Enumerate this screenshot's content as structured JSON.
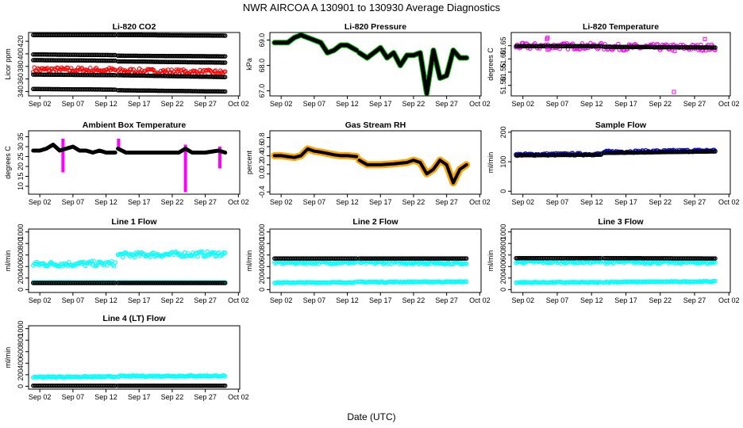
{
  "figure": {
    "title": "NWR   AIRCOA A   130901 to 130930   Average Diagnostics",
    "xlabel": "Date (UTC)"
  },
  "x_ticks": [
    "Sep 02",
    "Sep 07",
    "Sep 12",
    "Sep 17",
    "Sep 22",
    "Sep 27",
    "Oct 02"
  ],
  "x_tick_days": [
    2,
    7,
    12,
    17,
    22,
    27,
    32
  ],
  "x_range_days": [
    0.3,
    32.2
  ],
  "data_gap_days": [
    13.4,
    13.8
  ],
  "colors": {
    "black": "#000000",
    "red": "#ff0000",
    "magenta": "#ff00ff",
    "green": "#00c800",
    "orange": "#ffa500",
    "blue": "#0000ff",
    "cyan": "#00ffff"
  },
  "chart_data": [
    {
      "id": "co2",
      "type": "scatter",
      "title": "Li-820 CO2",
      "ylabel": "Licor ppm",
      "ylim": [
        333,
        434
      ],
      "yticks": [
        340,
        360,
        380,
        400,
        420
      ],
      "series": [
        {
          "name": "level-1",
          "color": "black",
          "kind": "band",
          "segments": [
            [
              1,
              13.4,
              430,
              430
            ],
            [
              13.8,
              30,
              430,
              429
            ]
          ]
        },
        {
          "name": "level-2",
          "color": "black",
          "kind": "band",
          "segments": [
            [
              1,
              13.4,
              399,
              398
            ],
            [
              13.8,
              30,
              397,
              396
            ]
          ]
        },
        {
          "name": "level-3",
          "color": "black",
          "kind": "band",
          "segments": [
            [
              1,
              13.4,
              390,
              389
            ],
            [
              13.8,
              30,
              388,
              386
            ]
          ]
        },
        {
          "name": "level-4",
          "color": "red",
          "kind": "noisy",
          "segments": [
            [
              1,
              13.4,
              375,
              374
            ],
            [
              13.8,
              30,
              373,
              370
            ]
          ],
          "spread": 4
        },
        {
          "name": "level-5",
          "color": "black",
          "kind": "band",
          "segments": [
            [
              1,
              13.4,
              367,
              366
            ],
            [
              13.8,
              30,
              366,
              363
            ]
          ]
        },
        {
          "name": "level-6",
          "color": "black",
          "kind": "band",
          "segments": [
            [
              1,
              13.4,
              344,
              343
            ],
            [
              13.8,
              30,
              342,
              340
            ]
          ]
        }
      ]
    },
    {
      "id": "pressure",
      "type": "line",
      "title": "Li-820 Pressure",
      "ylabel": "kPa",
      "ylim": [
        66.8,
        69.3
      ],
      "yticks": [
        67.0,
        68.0,
        69.0
      ],
      "ytick_labels": [
        "67.0",
        "68.0",
        "69.0"
      ],
      "series": [
        {
          "name": "pressure-outline",
          "color": "green",
          "width": 7,
          "x": [
            1,
            2,
            3,
            4,
            5,
            6,
            7,
            8,
            9,
            10,
            11,
            12,
            13.4,
            13.8,
            15,
            16,
            17,
            18,
            19,
            20,
            21,
            22,
            23,
            24,
            25,
            26,
            27,
            28,
            29,
            30
          ],
          "y": [
            68.9,
            68.9,
            68.9,
            69.1,
            69.2,
            69.1,
            69.0,
            68.9,
            68.5,
            68.6,
            68.8,
            68.8,
            68.6,
            68.5,
            68.3,
            68.5,
            68.7,
            68.3,
            68.5,
            68.0,
            68.4,
            68.4,
            68.5,
            66.9,
            68.6,
            67.5,
            67.6,
            68.6,
            68.3,
            68.3
          ]
        },
        {
          "name": "pressure",
          "color": "black",
          "width": 5,
          "x": [
            1,
            2,
            3,
            4,
            5,
            6,
            7,
            8,
            9,
            10,
            11,
            12,
            13.4,
            13.8,
            15,
            16,
            17,
            18,
            19,
            20,
            21,
            22,
            23,
            24,
            25,
            26,
            27,
            28,
            29,
            30
          ],
          "y": [
            68.9,
            68.9,
            68.9,
            69.1,
            69.2,
            69.1,
            69.0,
            68.9,
            68.5,
            68.6,
            68.8,
            68.8,
            68.6,
            68.5,
            68.3,
            68.5,
            68.7,
            68.3,
            68.5,
            68.0,
            68.4,
            68.4,
            68.5,
            66.9,
            68.6,
            67.5,
            67.6,
            68.6,
            68.3,
            68.3
          ]
        }
      ]
    },
    {
      "id": "li820temp",
      "type": "scatter",
      "title": "Li-820 Temperature",
      "ylabel": "degrees C",
      "ylim": [
        51.46,
        51.7
      ],
      "yticks": [
        51.5,
        51.55,
        51.6,
        51.65
      ],
      "ytick_labels": [
        "51.50",
        "51.55",
        "51.60",
        "51.65"
      ],
      "series": [
        {
          "name": "temp-spread",
          "color": "magenta",
          "kind": "noisy",
          "segments": [
            [
              1,
              13.4,
              51.648,
              51.648
            ],
            [
              13.8,
              30,
              51.645,
              51.643
            ]
          ],
          "spread": 0.012
        },
        {
          "name": "temp",
          "color": "black",
          "kind": "band",
          "segments": [
            [
              1,
              13.4,
              51.648,
              51.648
            ],
            [
              13.8,
              30,
              51.646,
              51.643
            ]
          ]
        },
        {
          "name": "temp-outliers",
          "color": "magenta",
          "kind": "points",
          "x": [
            5.5,
            5.6,
            24,
            24.1,
            28.5,
            5.6
          ],
          "y": [
            51.675,
            51.68,
            51.475,
            51.63,
            51.675,
            51.635
          ]
        }
      ]
    },
    {
      "id": "ambient",
      "type": "line",
      "title": "Ambient Box Temperature",
      "ylabel": "degrees C",
      "ylim": [
        6,
        38
      ],
      "yticks": [
        10,
        15,
        20,
        25,
        30,
        35
      ],
      "series": [
        {
          "name": "spikes",
          "color": "magenta",
          "kind": "spikes",
          "x": [
            5.5,
            13.9,
            24,
            29.2
          ],
          "ytop": [
            34,
            34,
            31,
            30
          ],
          "ybottom": [
            17,
            28,
            7,
            19
          ]
        },
        {
          "name": "ambient",
          "color": "black",
          "width": 5,
          "x": [
            1,
            2,
            3,
            4,
            5,
            6,
            7,
            8,
            9,
            10,
            11,
            12,
            13.4,
            13.8,
            15,
            17,
            19,
            21,
            23,
            24,
            25,
            27,
            29,
            30
          ],
          "y": [
            28,
            28,
            29,
            31,
            28,
            29,
            30,
            28,
            28,
            27,
            28,
            27,
            27,
            29,
            27,
            27,
            27,
            27,
            27,
            29,
            27,
            27,
            28,
            27
          ]
        }
      ]
    },
    {
      "id": "rh",
      "type": "line",
      "title": "Gas Stream RH",
      "ylabel": "percent",
      "ylim": [
        -0.45,
        0.95
      ],
      "yticks": [
        -0.4,
        0.0,
        0.2,
        0.4,
        0.6,
        0.8
      ],
      "ytick_labels": [
        "-0.4",
        "0.0",
        "0.2",
        "0.4",
        "0.6",
        "0.8"
      ],
      "series": [
        {
          "name": "rh-spread",
          "color": "orange",
          "width": 9,
          "x": [
            1,
            2,
            3,
            4,
            5,
            6,
            7,
            8,
            9,
            10,
            11,
            12,
            13.4,
            13.8,
            15,
            17,
            19,
            21,
            22,
            23,
            24,
            25,
            26,
            27,
            28,
            29,
            30
          ],
          "y": [
            0.4,
            0.4,
            0.38,
            0.36,
            0.4,
            0.55,
            0.5,
            0.48,
            0.45,
            0.42,
            0.4,
            0.4,
            0.38,
            0.3,
            0.2,
            0.2,
            0.22,
            0.25,
            0.3,
            0.25,
            0.0,
            0.1,
            0.3,
            0.2,
            -0.2,
            0.1,
            0.2
          ]
        },
        {
          "name": "rh",
          "color": "black",
          "width": 4,
          "x": [
            1,
            2,
            3,
            4,
            5,
            6,
            7,
            8,
            9,
            10,
            11,
            12,
            13.4,
            13.8,
            15,
            17,
            19,
            21,
            22,
            23,
            24,
            25,
            26,
            27,
            28,
            29,
            30
          ],
          "y": [
            0.4,
            0.4,
            0.38,
            0.36,
            0.4,
            0.55,
            0.5,
            0.48,
            0.45,
            0.42,
            0.4,
            0.4,
            0.38,
            0.3,
            0.2,
            0.2,
            0.22,
            0.25,
            0.3,
            0.25,
            0.0,
            0.1,
            0.3,
            0.2,
            -0.2,
            0.1,
            0.2
          ]
        }
      ]
    },
    {
      "id": "sampleflow",
      "type": "scatter",
      "title": "Sample Flow",
      "ylabel": "ml/min",
      "ylim": [
        -10,
        205
      ],
      "yticks": [
        0,
        100,
        200
      ],
      "series": [
        {
          "name": "flow-spread",
          "color": "blue",
          "kind": "noisy",
          "segments": [
            [
              1,
              13.4,
              124,
              126
            ],
            [
              13.8,
              30,
              133,
              138
            ]
          ],
          "spread": 4
        },
        {
          "name": "flow",
          "color": "black",
          "kind": "band",
          "segments": [
            [
              1,
              13.4,
              122,
              124
            ],
            [
              13.8,
              30,
              130,
              135
            ]
          ]
        }
      ]
    },
    {
      "id": "line1",
      "type": "scatter",
      "title": "Line 1 Flow",
      "ylabel": "ml/min",
      "ylim": [
        -50,
        1050
      ],
      "yticks": [
        0,
        200,
        400,
        600,
        800,
        1000
      ],
      "series": [
        {
          "name": "line1-cyan",
          "color": "cyan",
          "kind": "noisy",
          "segments": [
            [
              1,
              13.4,
              440,
              450
            ],
            [
              13.8,
              30,
              600,
              620
            ]
          ],
          "spread": 45
        },
        {
          "name": "line1-cyan-low",
          "color": "cyan",
          "kind": "band",
          "segments": [
            [
              1,
              13.4,
              125,
              125
            ],
            [
              13.8,
              30,
              125,
              125
            ]
          ]
        },
        {
          "name": "line1-black",
          "color": "black",
          "kind": "band",
          "segments": [
            [
              1,
              13.4,
              115,
              115
            ],
            [
              13.8,
              30,
              115,
              115
            ]
          ]
        }
      ]
    },
    {
      "id": "line2",
      "type": "scatter",
      "title": "Line 2 Flow",
      "ylabel": "ml/min",
      "ylim": [
        -50,
        1050
      ],
      "yticks": [
        0,
        200,
        400,
        600,
        800,
        1000
      ],
      "series": [
        {
          "name": "line2-cyan",
          "color": "cyan",
          "kind": "noisy",
          "segments": [
            [
              1,
              13.4,
              470,
              470
            ],
            [
              13.8,
              30,
              470,
              460
            ]
          ],
          "spread": 25
        },
        {
          "name": "line2-black",
          "color": "black",
          "kind": "band",
          "segments": [
            [
              1,
              13.4,
              540,
              540
            ],
            [
              13.8,
              30,
              540,
              540
            ]
          ]
        },
        {
          "name": "line2-cyan-low",
          "color": "cyan",
          "kind": "noisy",
          "segments": [
            [
              1,
              13.4,
              120,
              125
            ],
            [
              13.8,
              30,
              130,
              135
            ]
          ],
          "spread": 8
        }
      ]
    },
    {
      "id": "line3",
      "type": "scatter",
      "title": "Line 3 Flow",
      "ylabel": "ml/min",
      "ylim": [
        -50,
        1050
      ],
      "yticks": [
        0,
        200,
        400,
        600,
        800,
        1000
      ],
      "series": [
        {
          "name": "line3-cyan",
          "color": "cyan",
          "kind": "noisy",
          "segments": [
            [
              1,
              13.4,
              480,
              480
            ],
            [
              13.8,
              30,
              480,
              470
            ]
          ],
          "spread": 25
        },
        {
          "name": "line3-black",
          "color": "black",
          "kind": "band",
          "segments": [
            [
              1,
              13.4,
              545,
              545
            ],
            [
              13.8,
              30,
              545,
              540
            ]
          ]
        },
        {
          "name": "line3-cyan-low",
          "color": "cyan",
          "kind": "noisy",
          "segments": [
            [
              1,
              13.4,
              125,
              125
            ],
            [
              13.8,
              30,
              130,
              140
            ]
          ],
          "spread": 8
        }
      ]
    },
    {
      "id": "line4",
      "type": "scatter",
      "title": "Line 4 (LT) Flow",
      "ylabel": "ml/min",
      "ylim": [
        -50,
        1050
      ],
      "yticks": [
        0,
        200,
        400,
        600,
        800,
        1000
      ],
      "series": [
        {
          "name": "line4-cyan",
          "color": "cyan",
          "kind": "noisy",
          "segments": [
            [
              1,
              13.4,
              160,
              165
            ],
            [
              13.8,
              30,
              175,
              180
            ]
          ],
          "spread": 10
        },
        {
          "name": "line4-black",
          "color": "black",
          "kind": "band",
          "segments": [
            [
              1,
              13.4,
              10,
              10
            ],
            [
              13.8,
              30,
              10,
              10
            ]
          ]
        }
      ]
    }
  ]
}
